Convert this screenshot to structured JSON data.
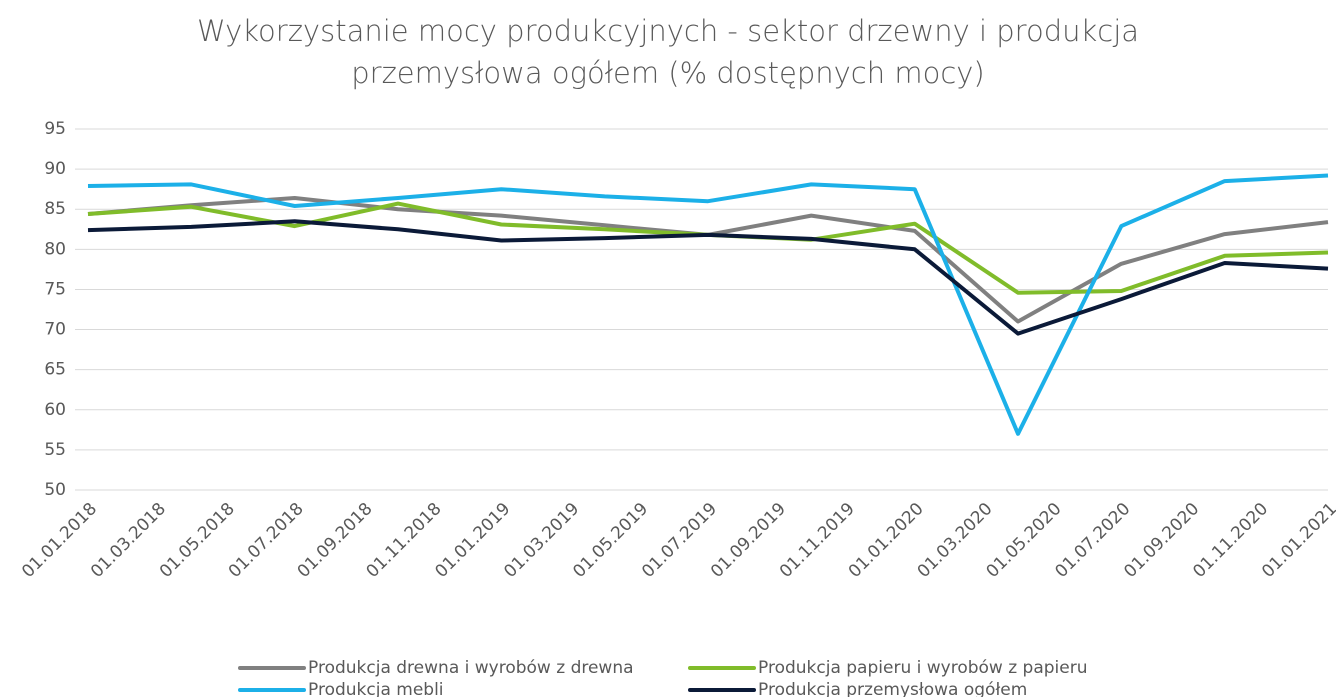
{
  "chart_data": {
    "type": "line",
    "title": "Wykorzystanie mocy produkcyjnych - sektor drzewny i produkcja przemysłowa ogółem (% dostępnych mocy)",
    "x": [
      "01.01.2018",
      "01.04.2018",
      "01.07.2018",
      "01.10.2018",
      "01.01.2019",
      "01.04.2019",
      "01.07.2019",
      "01.10.2019",
      "01.01.2020",
      "01.04.2020",
      "01.07.2020",
      "01.10.2020",
      "01.01.2021"
    ],
    "series": [
      {
        "name": "Produkcja drewna i wyrobów z drewna",
        "color": "#808080",
        "values": [
          84.4,
          85.5,
          86.4,
          85.0,
          84.2,
          83.0,
          81.8,
          84.2,
          82.3,
          71.0,
          78.2,
          81.9,
          83.4
        ]
      },
      {
        "name": "Produkcja papieru i wyrobów z papieru",
        "color": "#80bc2a",
        "values": [
          84.4,
          85.3,
          82.9,
          85.7,
          83.1,
          82.5,
          81.8,
          81.2,
          83.2,
          74.6,
          74.8,
          79.2,
          79.6
        ]
      },
      {
        "name": "Produkcja mebli",
        "color": "#1cb0e8",
        "values": [
          87.9,
          88.1,
          85.4,
          86.4,
          87.5,
          86.6,
          86.0,
          88.1,
          87.5,
          57.0,
          82.9,
          88.5,
          89.2
        ]
      },
      {
        "name": "Produkcja przemysłowa ogółem",
        "color": "#0b1a38",
        "values": [
          82.4,
          82.8,
          83.5,
          82.5,
          81.1,
          81.4,
          81.8,
          81.3,
          80.0,
          69.5,
          73.8,
          78.3,
          77.6
        ]
      }
    ],
    "xlim": [
      "01.01.2018",
      "01.01.2021"
    ],
    "xticks": [
      "01.01.2018",
      "01.03.2018",
      "01.05.2018",
      "01.07.2018",
      "01.09.2018",
      "01.11.2018",
      "01.01.2019",
      "01.03.2019",
      "01.05.2019",
      "01.07.2019",
      "01.09.2019",
      "01.11.2019",
      "01.01.2020",
      "01.03.2020",
      "01.05.2020",
      "01.07.2020",
      "01.09.2020",
      "01.11.2020",
      "01.01.2021"
    ],
    "ylim": [
      50,
      95
    ],
    "yticks": [
      50,
      55,
      60,
      65,
      70,
      75,
      80,
      85,
      90,
      95
    ],
    "grid": true,
    "legend": "bottom"
  }
}
